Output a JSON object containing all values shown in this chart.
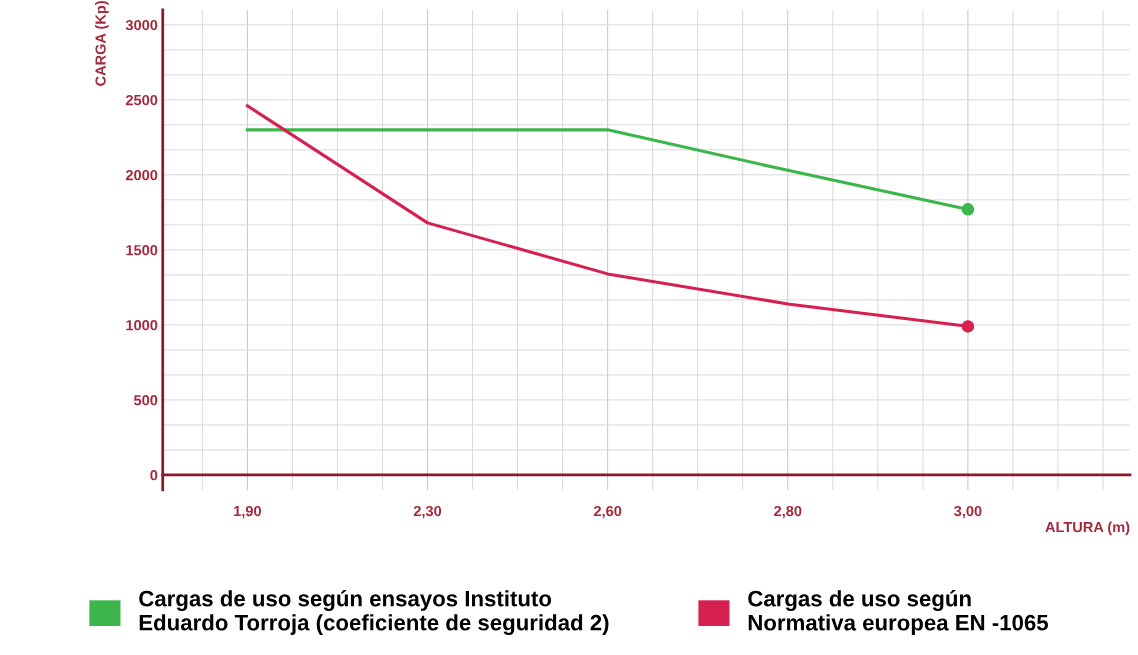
{
  "chart_data": {
    "type": "line",
    "xlabel": "ALTURA (m)",
    "ylabel": "CARGA (Kp)",
    "categories": [
      "1,90",
      "2,30",
      "2,60",
      "2,80",
      "3,00"
    ],
    "ylim": [
      -100,
      3100
    ],
    "yticks": [
      0,
      500,
      1000,
      1500,
      2000,
      2500,
      3000
    ],
    "grid": true,
    "legend": "bottom",
    "marker": "none",
    "line_style": "solid",
    "series": [
      {
        "name": "Cargas de uso según ensayos Instituto\nEduardo Torroja (coeficiente de seguridad 2)",
        "color": "#3cb54a",
        "values": [
          2300,
          2300,
          2300,
          2030,
          1770
        ]
      },
      {
        "name": "Cargas de uso según\nNormativa europea EN -1065",
        "color": "#d6204f",
        "values": [
          2460,
          1680,
          1340,
          1140,
          990
        ]
      }
    ]
  }
}
